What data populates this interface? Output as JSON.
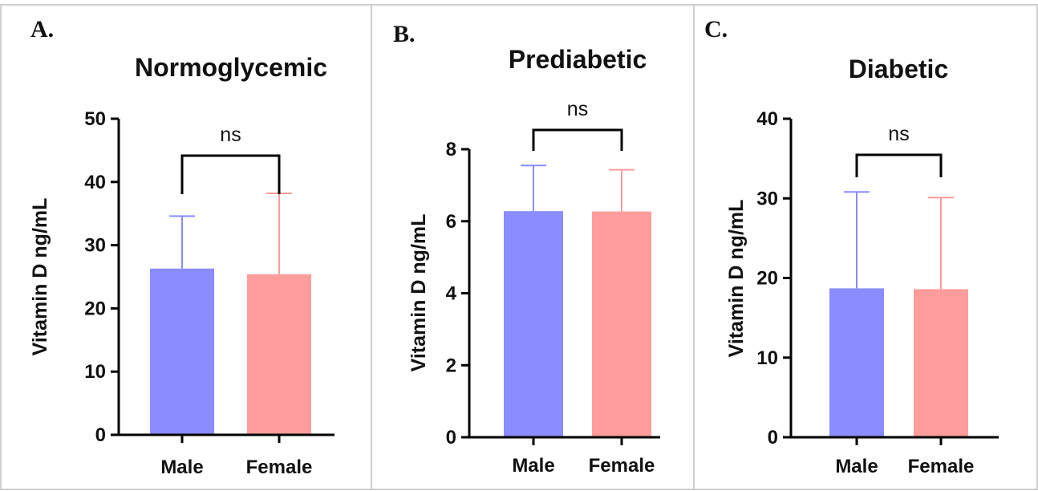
{
  "colors": {
    "male": "#8a8cff",
    "female": "#ff9c9c"
  },
  "chart_data": [
    {
      "type": "bar",
      "panel": "A.",
      "title": "Normoglycemic",
      "ylabel": "Vitamin D ng/mL",
      "xlabel": "",
      "categories": [
        "Male",
        "Female"
      ],
      "values": [
        26.3,
        25.4
      ],
      "error_upper": [
        34.6,
        38.2
      ],
      "ylim": [
        0,
        50
      ],
      "yticks": [
        0,
        10,
        20,
        30,
        40,
        50
      ],
      "significance": "ns"
    },
    {
      "type": "bar",
      "panel": "B.",
      "title": "Prediabetic",
      "ylabel": "Vitamin D ng/mL",
      "xlabel": "",
      "categories": [
        "Male",
        "Female"
      ],
      "values": [
        6.28,
        6.27
      ],
      "error_upper": [
        7.55,
        7.43
      ],
      "ylim": [
        0,
        8
      ],
      "yticks": [
        0,
        2,
        4,
        6,
        8
      ],
      "significance": "ns"
    },
    {
      "type": "bar",
      "panel": "C.",
      "title": "Diabetic",
      "ylabel": "Vitamin D ng/mL",
      "xlabel": "",
      "categories": [
        "Male",
        "Female"
      ],
      "values": [
        18.7,
        18.6
      ],
      "error_upper": [
        30.8,
        30.1
      ],
      "ylim": [
        0,
        40
      ],
      "yticks": [
        0,
        10,
        20,
        30,
        40
      ],
      "significance": "ns"
    }
  ]
}
